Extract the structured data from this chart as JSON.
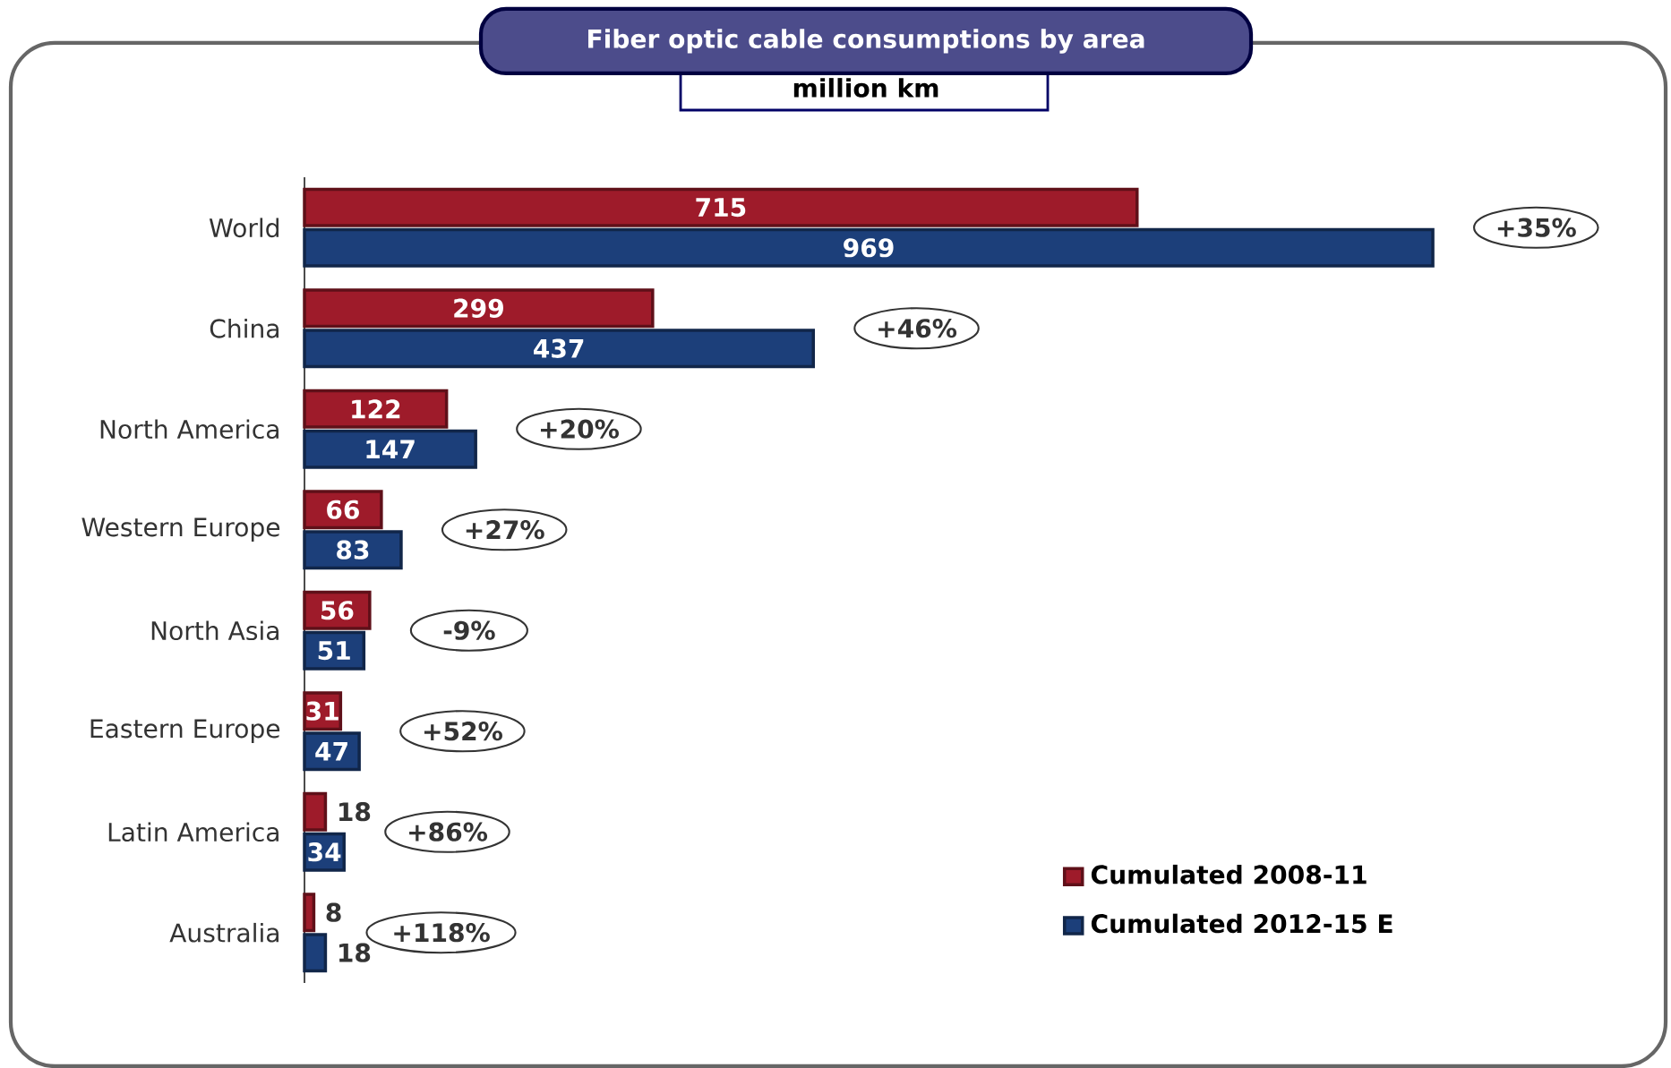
{
  "chart_data": {
    "type": "bar",
    "orientation": "horizontal",
    "title": "Fiber optic cable consumptions by area",
    "subtitle": "million km",
    "categories": [
      "World",
      "China",
      "North America",
      "Western Europe",
      "North Asia",
      "Eastern Europe",
      "Latin America",
      "Australia"
    ],
    "series": [
      {
        "name": "Cumulated 2008-11",
        "color": "#9e1b2a",
        "values": [
          715,
          299,
          122,
          66,
          56,
          31,
          18,
          8
        ]
      },
      {
        "name": "Cumulated 2012-15 E",
        "color": "#1c3f7a",
        "values": [
          969,
          437,
          147,
          83,
          51,
          47,
          34,
          18
        ]
      }
    ],
    "data_labels": true,
    "legend": "bottom right",
    "annotations": [
      "+35%",
      "+46%",
      "+20%",
      "+27%",
      "-9%",
      "+52%",
      "+86%",
      "+118%"
    ]
  }
}
